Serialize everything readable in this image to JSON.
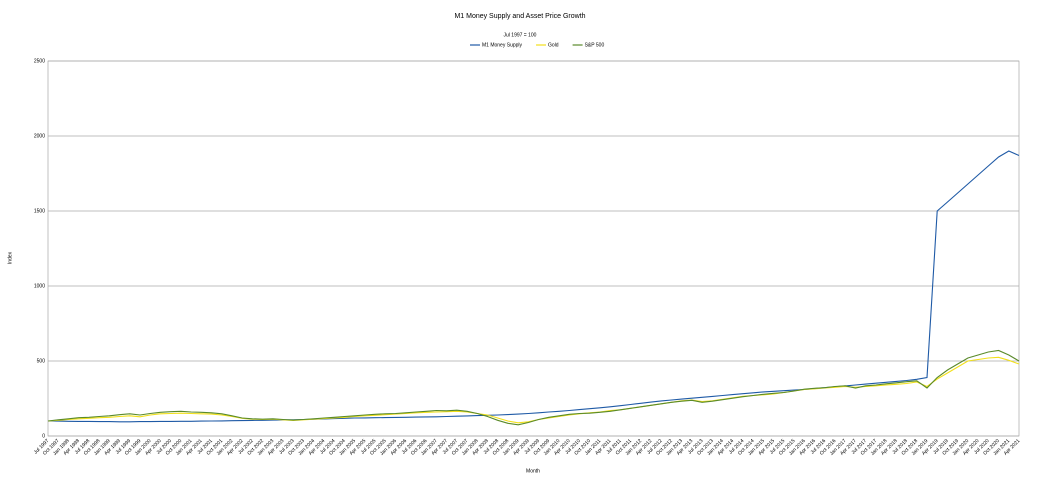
{
  "chart_data": {
    "type": "line",
    "title": "M1 Money Supply and Asset Price Growth",
    "subtitle": "Jul 1997 = 100",
    "x_label": "Month",
    "y_label": "Index",
    "categories": [
      "Jul 1997",
      "Oct 1997",
      "Jan 1998",
      "Apr 1998",
      "Jul 1998",
      "Oct 1998",
      "Jan 1999",
      "Apr 1999",
      "Jul 1999",
      "Oct 1999",
      "Jan 2000",
      "Apr 2000",
      "Jul 2000",
      "Oct 2000",
      "Jan 2001",
      "Apr 2001",
      "Jul 2001",
      "Oct 2001",
      "Jan 2002",
      "Apr 2002",
      "Jul 2002",
      "Oct 2002",
      "Jan 2003",
      "Apr 2003",
      "Jul 2003",
      "Oct 2003",
      "Jan 2004",
      "Apr 2004",
      "Jul 2004",
      "Oct 2004",
      "Jan 2005",
      "Apr 2005",
      "Jul 2005",
      "Oct 2005",
      "Jan 2006",
      "Apr 2006",
      "Jul 2006",
      "Oct 2006",
      "Jan 2007",
      "Apr 2007",
      "Jul 2007",
      "Oct 2007",
      "Jan 2008",
      "Apr 2008",
      "Jul 2008",
      "Oct 2008",
      "Jan 2009",
      "Apr 2009",
      "Jul 2009",
      "Oct 2009",
      "Jan 2010",
      "Apr 2010",
      "Jul 2010",
      "Oct 2010",
      "Jan 2011",
      "Apr 2011",
      "Jul 2011",
      "Oct 2011",
      "Jan 2012",
      "Apr 2012",
      "Jul 2012",
      "Oct 2012",
      "Jan 2013",
      "Apr 2013",
      "Jul 2013",
      "Oct 2013",
      "Jan 2014",
      "Apr 2014",
      "Jul 2014",
      "Oct 2014",
      "Jan 2015",
      "Apr 2015",
      "Jul 2015",
      "Oct 2015",
      "Jan 2016",
      "Apr 2016",
      "Jul 2016",
      "Oct 2016",
      "Jan 2017",
      "Apr 2017",
      "Jul 2017",
      "Oct 2017",
      "Jan 2018",
      "Apr 2018",
      "Jul 2018",
      "Oct 2018",
      "Jan 2019",
      "Apr 2019",
      "Jul 2019",
      "Oct 2019",
      "Jan 2020",
      "Apr 2020",
      "Jul 2020",
      "Oct 2020",
      "Jan 2021",
      "Apr 2021"
    ],
    "series": [
      {
        "name": "M1 Money Supply",
        "color": "#1f5aa6",
        "values": [
          100,
          99,
          98,
          97,
          97,
          96,
          96,
          95,
          95,
          96,
          96,
          97,
          97,
          98,
          98,
          99,
          100,
          101,
          102,
          103,
          104,
          105,
          106,
          107,
          108,
          110,
          112,
          114,
          116,
          118,
          120,
          121,
          122,
          123,
          124,
          125,
          126,
          127,
          128,
          130,
          132,
          134,
          136,
          138,
          140,
          143,
          146,
          150,
          155,
          160,
          165,
          170,
          176,
          182,
          188,
          195,
          202,
          210,
          218,
          226,
          234,
          240,
          246,
          252,
          258,
          264,
          270,
          276,
          282,
          288,
          294,
          298,
          302,
          306,
          310,
          316,
          322,
          328,
          334,
          340,
          346,
          352,
          358,
          364,
          370,
          378,
          390,
          1500,
          1560,
          1620,
          1680,
          1740,
          1800,
          1860,
          1900,
          1870
        ]
      },
      {
        "name": "Gold",
        "color": "#f2e01a",
        "values": [
          100,
          105,
          110,
          115,
          118,
          122,
          125,
          130,
          135,
          128,
          140,
          148,
          150,
          152,
          150,
          148,
          146,
          140,
          130,
          118,
          112,
          110,
          112,
          108,
          104,
          108,
          112,
          116,
          120,
          125,
          130,
          135,
          138,
          142,
          146,
          150,
          155,
          158,
          160,
          162,
          165,
          160,
          150,
          140,
          120,
          100,
          88,
          95,
          110,
          120,
          130,
          140,
          148,
          155,
          160,
          170,
          175,
          185,
          195,
          205,
          215,
          225,
          235,
          240,
          230,
          235,
          245,
          255,
          265,
          270,
          275,
          280,
          290,
          300,
          310,
          315,
          320,
          325,
          330,
          325,
          330,
          335,
          340,
          345,
          350,
          360,
          330,
          380,
          420,
          460,
          500,
          510,
          520,
          525,
          505,
          480
        ]
      },
      {
        "name": "S&P 500",
        "color": "#5a8a2a",
        "values": [
          100,
          108,
          115,
          122,
          125,
          130,
          135,
          142,
          148,
          140,
          150,
          158,
          162,
          165,
          160,
          158,
          155,
          148,
          135,
          120,
          115,
          112,
          115,
          110,
          106,
          110,
          115,
          120,
          125,
          130,
          135,
          140,
          145,
          148,
          150,
          155,
          160,
          165,
          170,
          168,
          172,
          165,
          150,
          130,
          105,
          85,
          75,
          90,
          110,
          125,
          135,
          145,
          150,
          152,
          158,
          165,
          175,
          185,
          195,
          205,
          215,
          225,
          232,
          238,
          225,
          232,
          242,
          252,
          262,
          270,
          278,
          285,
          290,
          300,
          312,
          318,
          322,
          330,
          335,
          320,
          335,
          340,
          348,
          355,
          362,
          368,
          320,
          390,
          440,
          480,
          520,
          540,
          560,
          570,
          540,
          500
        ]
      }
    ],
    "ylim": [
      0,
      2500
    ],
    "yticks": [
      0,
      500,
      1000,
      1500,
      2000,
      2500
    ],
    "grid": true
  }
}
